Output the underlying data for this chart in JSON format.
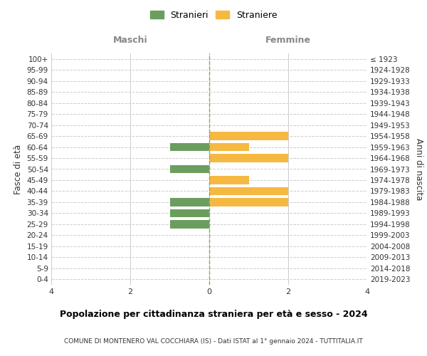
{
  "age_groups": [
    "100+",
    "95-99",
    "90-94",
    "85-89",
    "80-84",
    "75-79",
    "70-74",
    "65-69",
    "60-64",
    "55-59",
    "50-54",
    "45-49",
    "40-44",
    "35-39",
    "30-34",
    "25-29",
    "20-24",
    "15-19",
    "10-14",
    "5-9",
    "0-4"
  ],
  "birth_years": [
    "≤ 1923",
    "1924-1928",
    "1929-1933",
    "1934-1938",
    "1939-1943",
    "1944-1948",
    "1949-1953",
    "1954-1958",
    "1959-1963",
    "1964-1968",
    "1969-1973",
    "1974-1978",
    "1979-1983",
    "1984-1988",
    "1989-1993",
    "1994-1998",
    "1999-2003",
    "2004-2008",
    "2009-2013",
    "2014-2018",
    "2019-2023"
  ],
  "maschi": [
    0,
    0,
    0,
    0,
    0,
    0,
    0,
    0,
    -1,
    0,
    -1,
    0,
    0,
    -1,
    -1,
    -1,
    0,
    0,
    0,
    0,
    0
  ],
  "femmine": [
    0,
    0,
    0,
    0,
    0,
    0,
    0,
    2,
    1,
    2,
    0,
    1,
    2,
    2,
    0,
    0,
    0,
    0,
    0,
    0,
    0
  ],
  "color_maschi": "#6b9e5e",
  "color_femmine": "#f5b942",
  "title_main": "Popolazione per cittadinanza straniera per età e sesso - 2024",
  "title_sub": "COMUNE DI MONTENERO VAL COCCHIARA (IS) - Dati ISTAT al 1° gennaio 2024 - TUTTITALIA.IT",
  "label_maschi": "Maschi",
  "label_femmine": "Femmine",
  "ylabel_left": "Fasce di età",
  "ylabel_right": "Anni di nascita",
  "legend_maschi": "Stranieri",
  "legend_femmine": "Straniere",
  "xlim": [
    -4,
    4
  ],
  "xticks": [
    -4,
    -2,
    0,
    2,
    4
  ],
  "xticklabels": [
    "4",
    "2",
    "0",
    "2",
    "4"
  ],
  "bar_height": 0.75,
  "background_color": "#ffffff",
  "grid_color": "#cccccc",
  "dashed_line_color": "#999966",
  "label_color": "#888888",
  "text_color": "#333333"
}
